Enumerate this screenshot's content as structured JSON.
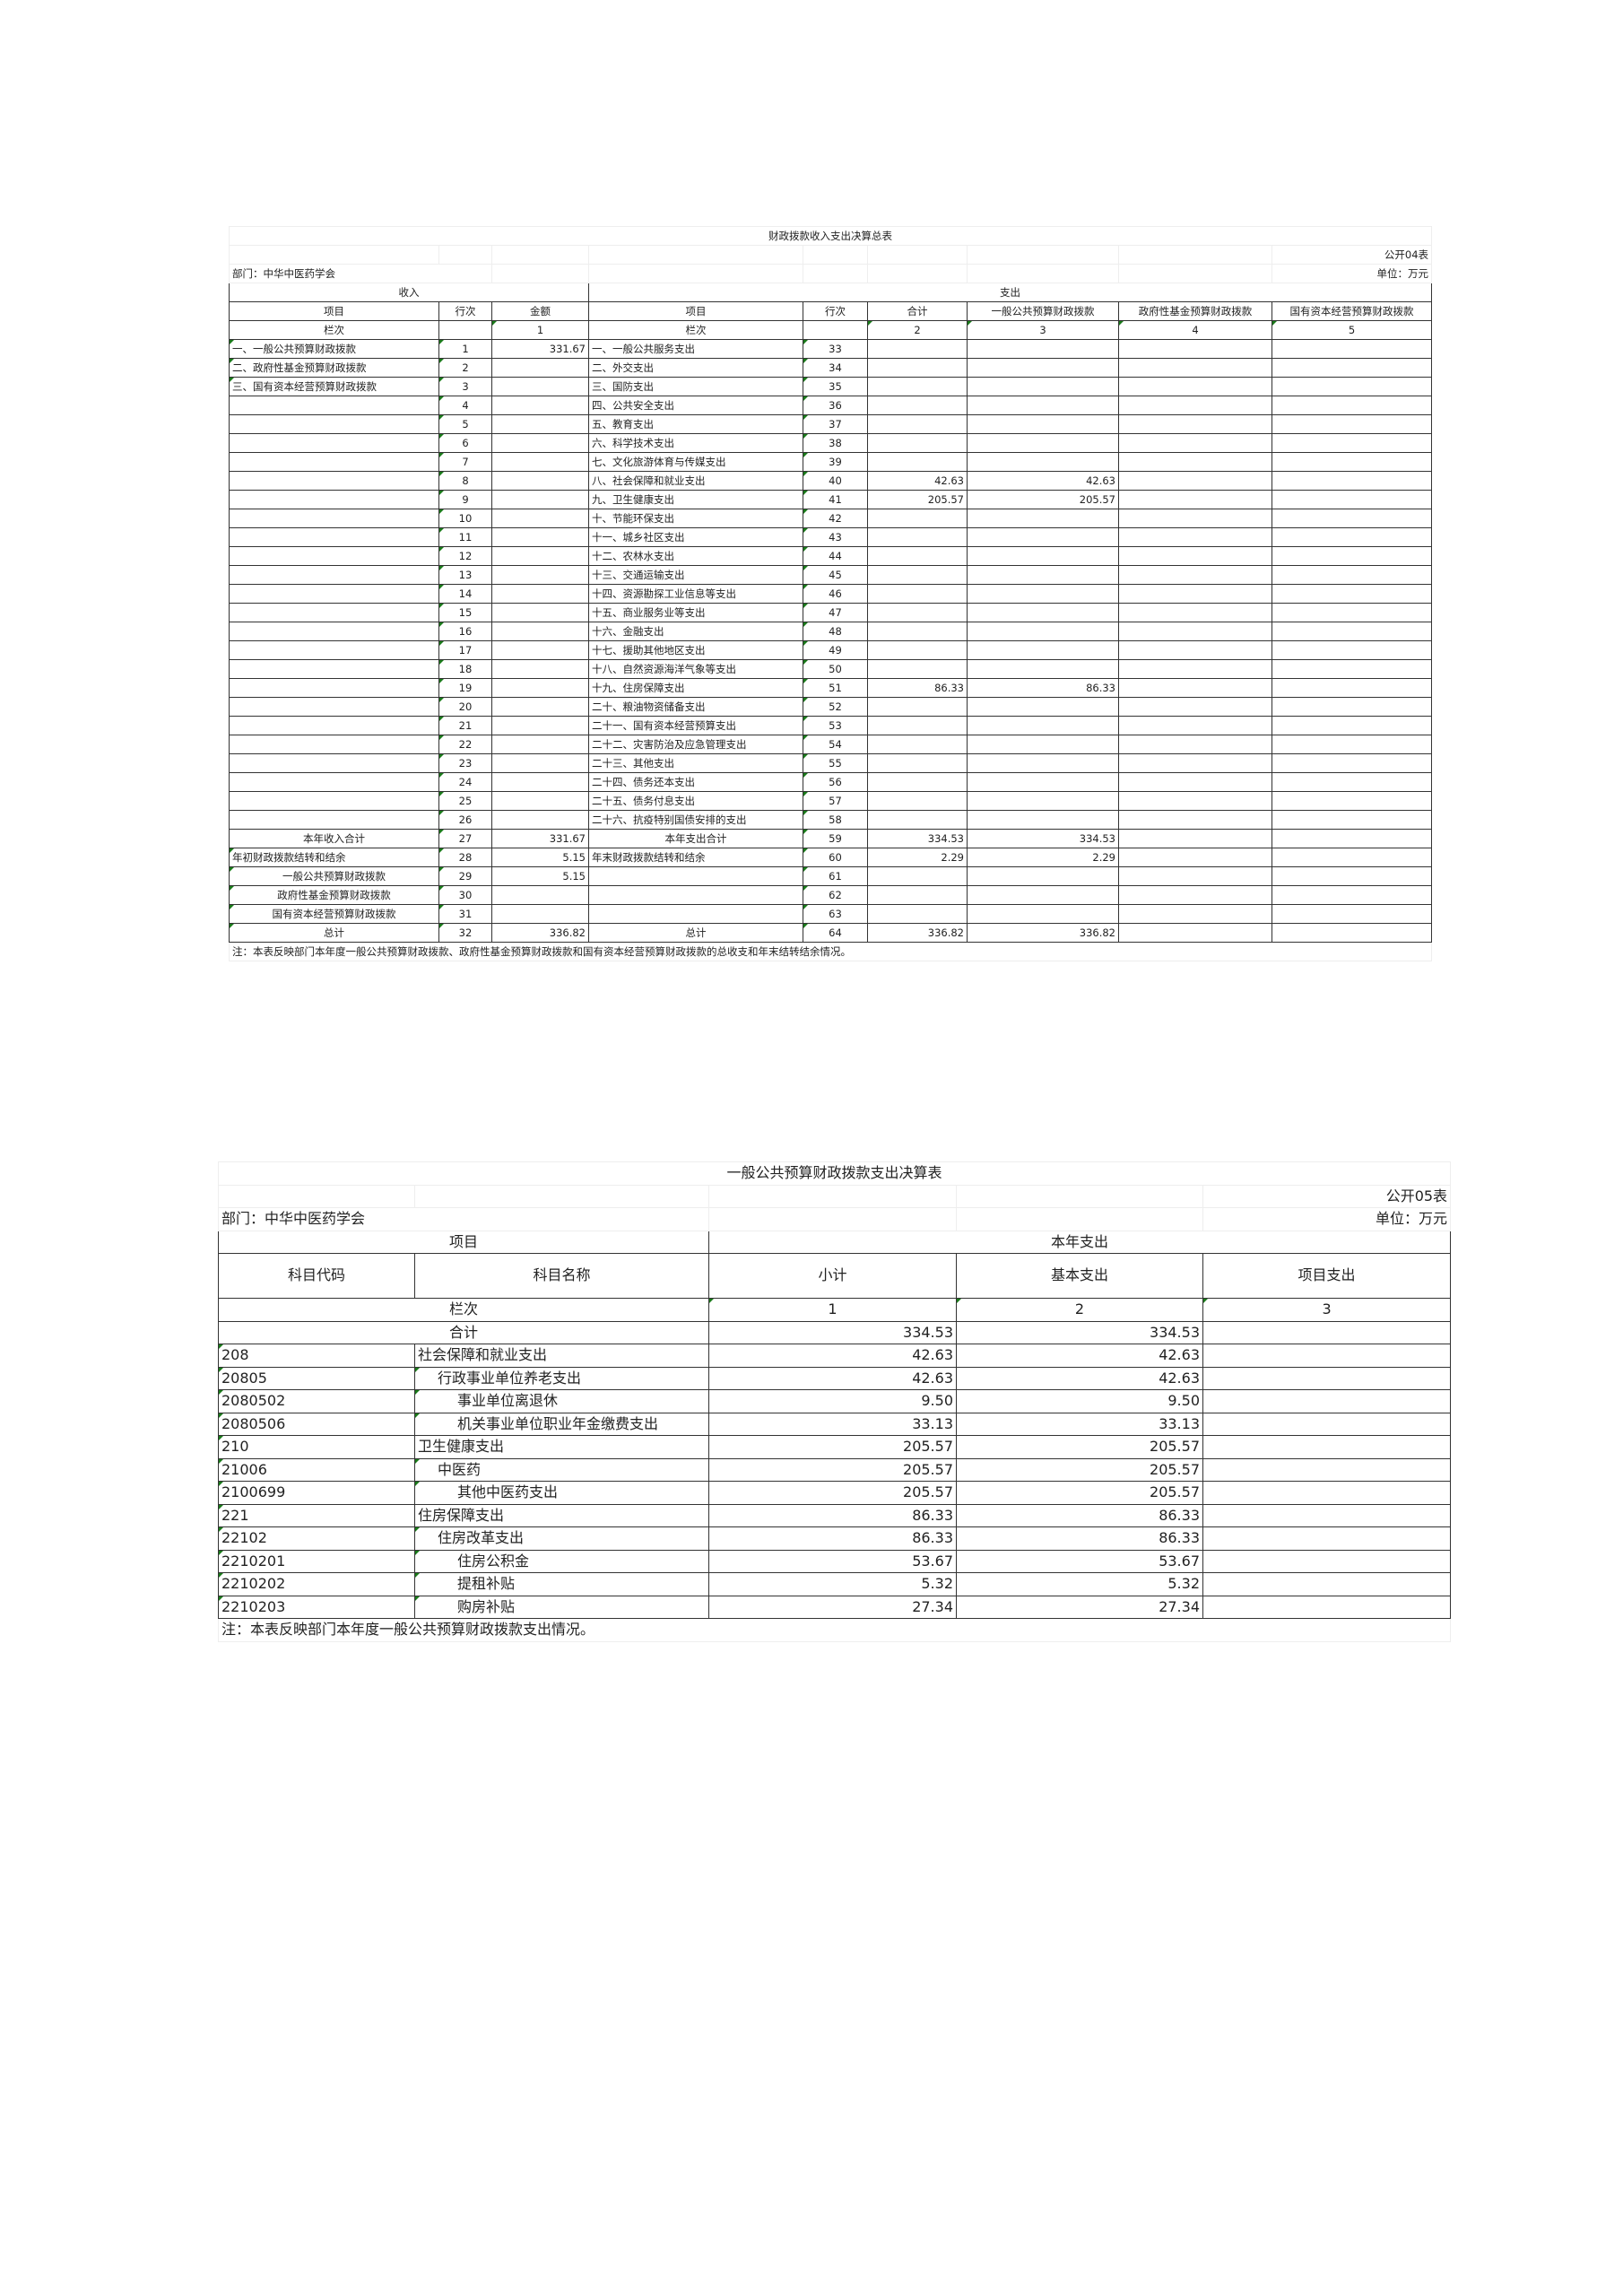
{
  "table1": {
    "title": "财政拨款收入支出决算总表",
    "form_no": "公开04表",
    "department": "部门：中华中医药学会",
    "unit": "单位：万元",
    "income_header": "收入",
    "expense_header": "支出",
    "col_headers": [
      "项目",
      "行次",
      "金额",
      "项目",
      "行次",
      "合计",
      "一般公共预算财政拨款",
      "政府性基金预算财政拨款",
      "国有资本经营预算财政拨款"
    ],
    "col_index_label": "栏次",
    "col_index": [
      "",
      "1",
      "",
      "",
      "2",
      "3",
      "4",
      "5"
    ],
    "rows": [
      [
        "一、一般公共预算财政拨款",
        "1",
        "331.67",
        "一、一般公共服务支出",
        "33",
        "",
        "",
        "",
        ""
      ],
      [
        "二、政府性基金预算财政拨款",
        "2",
        "",
        "二、外交支出",
        "34",
        "",
        "",
        "",
        ""
      ],
      [
        "三、国有资本经营预算财政拨款",
        "3",
        "",
        "三、国防支出",
        "35",
        "",
        "",
        "",
        ""
      ],
      [
        "",
        "4",
        "",
        "四、公共安全支出",
        "36",
        "",
        "",
        "",
        ""
      ],
      [
        "",
        "5",
        "",
        "五、教育支出",
        "37",
        "",
        "",
        "",
        ""
      ],
      [
        "",
        "6",
        "",
        "六、科学技术支出",
        "38",
        "",
        "",
        "",
        ""
      ],
      [
        "",
        "7",
        "",
        "七、文化旅游体育与传媒支出",
        "39",
        "",
        "",
        "",
        ""
      ],
      [
        "",
        "8",
        "",
        "八、社会保障和就业支出",
        "40",
        "42.63",
        "42.63",
        "",
        ""
      ],
      [
        "",
        "9",
        "",
        "九、卫生健康支出",
        "41",
        "205.57",
        "205.57",
        "",
        ""
      ],
      [
        "",
        "10",
        "",
        "十、节能环保支出",
        "42",
        "",
        "",
        "",
        ""
      ],
      [
        "",
        "11",
        "",
        "十一、城乡社区支出",
        "43",
        "",
        "",
        "",
        ""
      ],
      [
        "",
        "12",
        "",
        "十二、农林水支出",
        "44",
        "",
        "",
        "",
        ""
      ],
      [
        "",
        "13",
        "",
        "十三、交通运输支出",
        "45",
        "",
        "",
        "",
        ""
      ],
      [
        "",
        "14",
        "",
        "十四、资源勘探工业信息等支出",
        "46",
        "",
        "",
        "",
        ""
      ],
      [
        "",
        "15",
        "",
        "十五、商业服务业等支出",
        "47",
        "",
        "",
        "",
        ""
      ],
      [
        "",
        "16",
        "",
        "十六、金融支出",
        "48",
        "",
        "",
        "",
        ""
      ],
      [
        "",
        "17",
        "",
        "十七、援助其他地区支出",
        "49",
        "",
        "",
        "",
        ""
      ],
      [
        "",
        "18",
        "",
        "十八、自然资源海洋气象等支出",
        "50",
        "",
        "",
        "",
        ""
      ],
      [
        "",
        "19",
        "",
        "十九、住房保障支出",
        "51",
        "86.33",
        "86.33",
        "",
        ""
      ],
      [
        "",
        "20",
        "",
        "二十、粮油物资储备支出",
        "52",
        "",
        "",
        "",
        ""
      ],
      [
        "",
        "21",
        "",
        "二十一、国有资本经营预算支出",
        "53",
        "",
        "",
        "",
        ""
      ],
      [
        "",
        "22",
        "",
        "二十二、灾害防治及应急管理支出",
        "54",
        "",
        "",
        "",
        ""
      ],
      [
        "",
        "23",
        "",
        "二十三、其他支出",
        "55",
        "",
        "",
        "",
        ""
      ],
      [
        "",
        "24",
        "",
        "二十四、债务还本支出",
        "56",
        "",
        "",
        "",
        ""
      ],
      [
        "",
        "25",
        "",
        "二十五、债务付息支出",
        "57",
        "",
        "",
        "",
        ""
      ],
      [
        "",
        "26",
        "",
        "二十六、抗疫特别国债安排的支出",
        "58",
        "",
        "",
        "",
        ""
      ],
      [
        "本年收入合计",
        "27",
        "331.67",
        "本年支出合计",
        "59",
        "334.53",
        "334.53",
        "",
        ""
      ],
      [
        "年初财政拨款结转和结余",
        "28",
        "5.15",
        "年末财政拨款结转和结余",
        "60",
        "2.29",
        "2.29",
        "",
        ""
      ],
      [
        "一般公共预算财政拨款",
        "29",
        "5.15",
        "",
        "61",
        "",
        "",
        "",
        ""
      ],
      [
        "政府性基金预算财政拨款",
        "30",
        "",
        "",
        "62",
        "",
        "",
        "",
        ""
      ],
      [
        "国有资本经营预算财政拨款",
        "31",
        "",
        "",
        "63",
        "",
        "",
        "",
        ""
      ],
      [
        "总计",
        "32",
        "336.82",
        "总计",
        "64",
        "336.82",
        "336.82",
        "",
        ""
      ]
    ],
    "note": "注：本表反映部门本年度一般公共预算财政拨款、政府性基金预算财政拨款和国有资本经营预算财政拨款的总收支和年末结转结余情况。"
  },
  "table2": {
    "title": "一般公共预算财政拨款支出决算表",
    "form_no": "公开05表",
    "department": "部门：中华中医药学会",
    "unit": "单位：万元",
    "item_header": "项目",
    "expense_header": "本年支出",
    "col_headers": [
      "科目代码",
      "科目名称",
      "小计",
      "基本支出",
      "项目支出"
    ],
    "col_index_label": "栏次",
    "col_index": [
      "1",
      "2",
      "3"
    ],
    "total_label": "合计",
    "total": [
      "334.53",
      "334.53",
      ""
    ],
    "rows": [
      [
        "208",
        "社会保障和就业支出",
        "42.63",
        "42.63",
        "",
        0
      ],
      [
        "20805",
        "行政事业单位养老支出",
        "42.63",
        "42.63",
        "",
        1
      ],
      [
        "2080502",
        "事业单位离退休",
        "9.50",
        "9.50",
        "",
        2
      ],
      [
        "2080506",
        "机关事业单位职业年金缴费支出",
        "33.13",
        "33.13",
        "",
        2
      ],
      [
        "210",
        "卫生健康支出",
        "205.57",
        "205.57",
        "",
        0
      ],
      [
        "21006",
        "中医药",
        "205.57",
        "205.57",
        "",
        1
      ],
      [
        "2100699",
        "其他中医药支出",
        "205.57",
        "205.57",
        "",
        2
      ],
      [
        "221",
        "住房保障支出",
        "86.33",
        "86.33",
        "",
        0
      ],
      [
        "22102",
        "住房改革支出",
        "86.33",
        "86.33",
        "",
        1
      ],
      [
        "2210201",
        "住房公积金",
        "53.67",
        "53.67",
        "",
        2
      ],
      [
        "2210202",
        "提租补贴",
        "5.32",
        "5.32",
        "",
        2
      ],
      [
        "2210203",
        "购房补贴",
        "27.34",
        "27.34",
        "",
        2
      ]
    ],
    "note": "注：本表反映部门本年度一般公共预算财政拨款支出情况。"
  }
}
